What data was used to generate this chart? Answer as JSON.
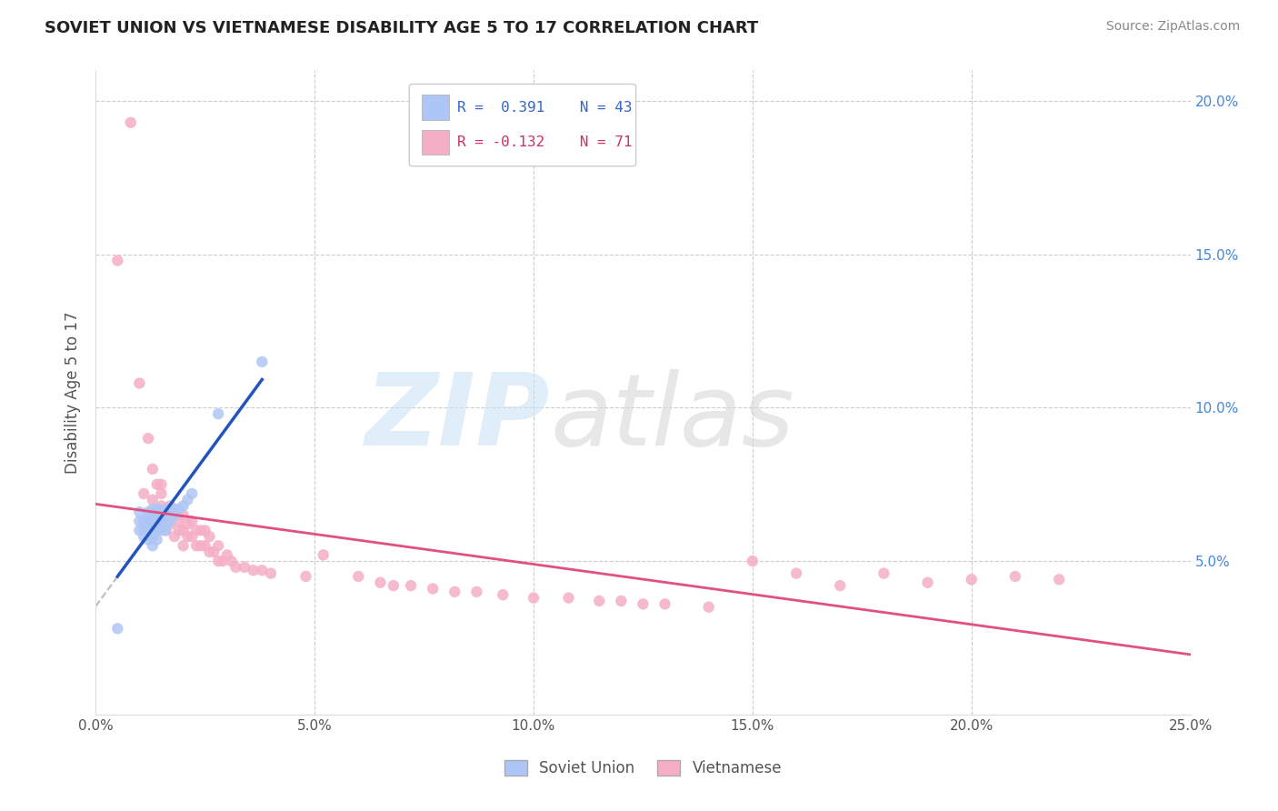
{
  "title": "SOVIET UNION VS VIETNAMESE DISABILITY AGE 5 TO 17 CORRELATION CHART",
  "source": "Source: ZipAtlas.com",
  "ylabel": "Disability Age 5 to 17",
  "xlim": [
    0.0,
    0.25
  ],
  "ylim": [
    0.0,
    0.21
  ],
  "xticks": [
    0.0,
    0.05,
    0.1,
    0.15,
    0.2,
    0.25
  ],
  "yticks": [
    0.05,
    0.1,
    0.15,
    0.2
  ],
  "xticklabels": [
    "0.0%",
    "5.0%",
    "10.0%",
    "15.0%",
    "20.0%",
    "25.0%"
  ],
  "yticklabels": [
    "5.0%",
    "10.0%",
    "15.0%",
    "20.0%"
  ],
  "soviet_R": 0.391,
  "soviet_N": 43,
  "vietnamese_R": -0.132,
  "vietnamese_N": 71,
  "soviet_color": "#aec6f5",
  "vietnamese_color": "#f5aec6",
  "soviet_line_color": "#2255bb",
  "vietnamese_line_color": "#e05080",
  "soviet_dash_color": "#aaaaaa",
  "grid_color": "#cccccc",
  "bg_color": "#ffffff",
  "title_fontsize": 13,
  "soviet_x": [
    0.005,
    0.01,
    0.01,
    0.01,
    0.011,
    0.011,
    0.011,
    0.012,
    0.012,
    0.012,
    0.012,
    0.012,
    0.013,
    0.013,
    0.013,
    0.013,
    0.013,
    0.013,
    0.013,
    0.014,
    0.014,
    0.014,
    0.014,
    0.014,
    0.014,
    0.015,
    0.015,
    0.015,
    0.015,
    0.016,
    0.016,
    0.016,
    0.016,
    0.017,
    0.017,
    0.018,
    0.018,
    0.019,
    0.02,
    0.021,
    0.022,
    0.028,
    0.038
  ],
  "soviet_y": [
    0.028,
    0.06,
    0.063,
    0.066,
    0.058,
    0.06,
    0.063,
    0.057,
    0.06,
    0.062,
    0.064,
    0.066,
    0.055,
    0.058,
    0.06,
    0.062,
    0.063,
    0.065,
    0.067,
    0.057,
    0.06,
    0.062,
    0.064,
    0.066,
    0.067,
    0.06,
    0.062,
    0.064,
    0.066,
    0.06,
    0.062,
    0.065,
    0.067,
    0.063,
    0.067,
    0.065,
    0.067,
    0.067,
    0.068,
    0.07,
    0.072,
    0.098,
    0.115
  ],
  "vietnamese_x": [
    0.005,
    0.008,
    0.01,
    0.011,
    0.012,
    0.013,
    0.013,
    0.014,
    0.014,
    0.015,
    0.015,
    0.015,
    0.016,
    0.016,
    0.017,
    0.017,
    0.018,
    0.018,
    0.019,
    0.019,
    0.02,
    0.02,
    0.02,
    0.021,
    0.021,
    0.022,
    0.022,
    0.023,
    0.023,
    0.024,
    0.024,
    0.025,
    0.025,
    0.026,
    0.026,
    0.027,
    0.028,
    0.028,
    0.029,
    0.03,
    0.031,
    0.032,
    0.034,
    0.036,
    0.038,
    0.04,
    0.048,
    0.052,
    0.06,
    0.065,
    0.068,
    0.072,
    0.077,
    0.082,
    0.087,
    0.093,
    0.1,
    0.108,
    0.115,
    0.12,
    0.125,
    0.13,
    0.14,
    0.15,
    0.16,
    0.17,
    0.18,
    0.19,
    0.2,
    0.21,
    0.22
  ],
  "vietnamese_y": [
    0.148,
    0.193,
    0.108,
    0.072,
    0.09,
    0.08,
    0.07,
    0.065,
    0.075,
    0.068,
    0.072,
    0.075,
    0.06,
    0.065,
    0.062,
    0.068,
    0.058,
    0.065,
    0.06,
    0.063,
    0.055,
    0.06,
    0.065,
    0.058,
    0.062,
    0.058,
    0.063,
    0.055,
    0.06,
    0.055,
    0.06,
    0.055,
    0.06,
    0.053,
    0.058,
    0.053,
    0.05,
    0.055,
    0.05,
    0.052,
    0.05,
    0.048,
    0.048,
    0.047,
    0.047,
    0.046,
    0.045,
    0.052,
    0.045,
    0.043,
    0.042,
    0.042,
    0.041,
    0.04,
    0.04,
    0.039,
    0.038,
    0.038,
    0.037,
    0.037,
    0.036,
    0.036,
    0.035,
    0.05,
    0.046,
    0.042,
    0.046,
    0.043,
    0.044,
    0.045,
    0.044
  ]
}
